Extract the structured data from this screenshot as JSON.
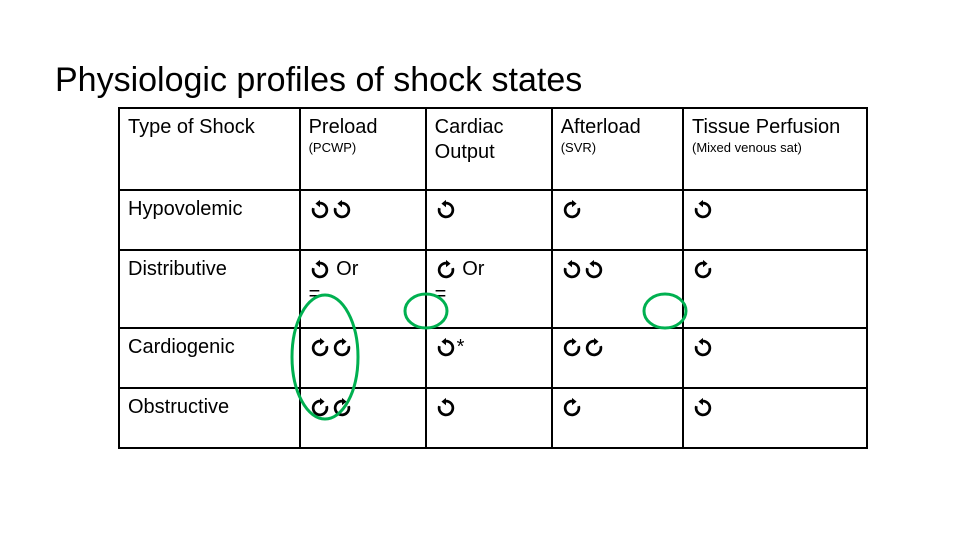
{
  "title": "Physiologic profiles of shock states",
  "arrow_color": "#000000",
  "ring_color": "#00b050",
  "ring_stroke": 3,
  "columns": [
    {
      "main": "Type of Shock",
      "sub": ""
    },
    {
      "main": "Preload",
      "sub": "(PCWP)"
    },
    {
      "main": "Cardiac Output",
      "sub": ""
    },
    {
      "main": "Afterload",
      "sub": "(SVR)"
    },
    {
      "main": "Tissue Perfusion",
      "sub": "(Mixed venous sat)"
    }
  ],
  "rows": [
    {
      "label": "Hypovolemic",
      "cells": [
        {
          "arrows": [
            "down",
            "down"
          ],
          "extra": ""
        },
        {
          "arrows": [
            "down"
          ],
          "extra": ""
        },
        {
          "arrows": [
            "up"
          ],
          "extra": ""
        },
        {
          "arrows": [
            "down"
          ],
          "extra": ""
        }
      ]
    },
    {
      "label": "Distributive",
      "cells": [
        {
          "arrows": [
            "down"
          ],
          "extra": " Or =",
          "ring": "tall"
        },
        {
          "arrows": [
            "up"
          ],
          "extra": "Or =",
          "ring": "small"
        },
        {
          "arrows": [
            "down",
            "down"
          ],
          "extra": ""
        },
        {
          "arrows": [
            "up"
          ],
          "extra": "",
          "ring": "small"
        }
      ]
    },
    {
      "label": "Cardiogenic",
      "cells": [
        {
          "arrows": [
            "up",
            "up"
          ],
          "extra": ""
        },
        {
          "arrows": [
            "down"
          ],
          "extra": "*"
        },
        {
          "arrows": [
            "up",
            "up"
          ],
          "extra": ""
        },
        {
          "arrows": [
            "down"
          ],
          "extra": ""
        }
      ]
    },
    {
      "label": "Obstructive",
      "cells": [
        {
          "arrows": [
            "up",
            "up"
          ],
          "extra": ""
        },
        {
          "arrows": [
            "down"
          ],
          "extra": ""
        },
        {
          "arrows": [
            "up"
          ],
          "extra": ""
        },
        {
          "arrows": [
            "down"
          ],
          "extra": ""
        }
      ]
    }
  ]
}
